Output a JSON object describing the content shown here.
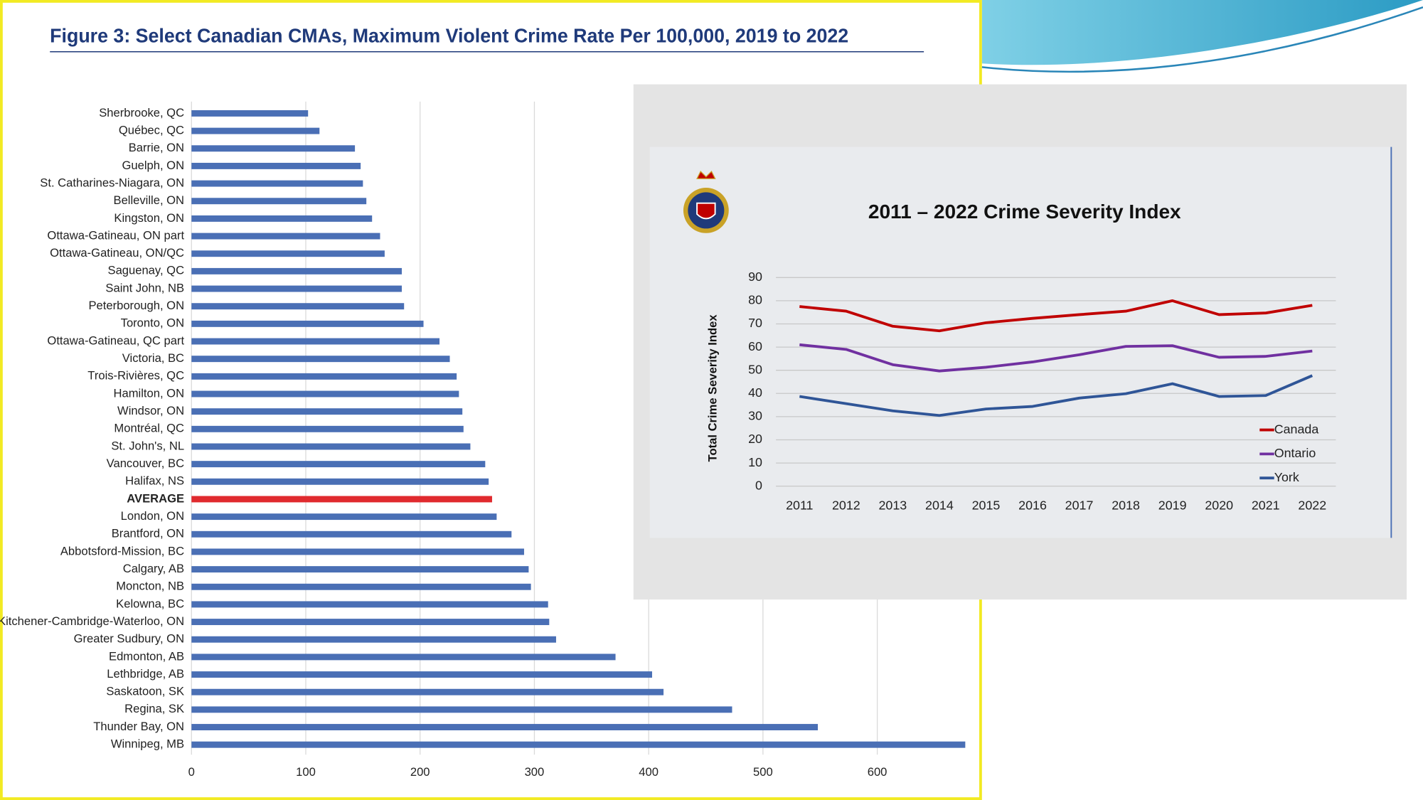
{
  "chart_data": [
    {
      "type": "hbar",
      "title": "Figure 3: Select Canadian CMAs, Maximum Violent Crime Rate Per 100,000, 2019 to 2022",
      "categories": [
        "Sherbrooke, QC",
        "Québec, QC",
        "Barrie, ON",
        "Guelph, ON",
        "St. Catharines-Niagara, ON",
        "Belleville, ON",
        "Kingston, ON",
        "Ottawa-Gatineau, ON part",
        "Ottawa-Gatineau, ON/QC",
        "Saguenay, QC",
        "Saint John, NB",
        "Peterborough, ON",
        "Toronto, ON",
        "Ottawa-Gatineau, QC part",
        "Victoria, BC",
        "Trois-Rivières, QC",
        "Hamilton, ON",
        "Windsor, ON",
        "Montréal, QC",
        "St. John's, NL",
        "Vancouver, BC",
        "Halifax, NS",
        "AVERAGE",
        "London, ON",
        "Brantford, ON",
        "Abbotsford-Mission, BC",
        "Calgary, AB",
        "Moncton, NB",
        "Kelowna, BC",
        "Kitchener-Cambridge-Waterloo, ON",
        "Greater Sudbury, ON",
        "Edmonton, AB",
        "Lethbridge, AB",
        "Saskatoon, SK",
        "Regina, SK",
        "Thunder Bay, ON",
        "Winnipeg, MB"
      ],
      "values": [
        102,
        112,
        143,
        148,
        150,
        153,
        158,
        165,
        169,
        184,
        184,
        186,
        203,
        217,
        226,
        232,
        234,
        237,
        238,
        244,
        257,
        260,
        263,
        267,
        280,
        291,
        295,
        297,
        312,
        313,
        319,
        371,
        403,
        413,
        473,
        548,
        677
      ],
      "color": "#4a6fb5",
      "highlight": {
        "index": 22,
        "color": "#e02a2e"
      },
      "xlim": [
        0,
        690
      ],
      "xticks": [
        0,
        100,
        200,
        300,
        400,
        500,
        600
      ],
      "grid": true
    },
    {
      "type": "line",
      "title": "2011 – 2022 Crime Severity Index",
      "y_label": "Total Crime Severity Index",
      "categories": [
        "2011",
        "2012",
        "2013",
        "2014",
        "2015",
        "2016",
        "2017",
        "2018",
        "2019",
        "2020",
        "2021",
        "2022"
      ],
      "series": [
        {
          "name": "Canada",
          "color": "#c00000",
          "values": [
            77.5,
            75.5,
            69,
            67,
            70.5,
            72.4,
            74,
            75.5,
            80,
            74,
            74.7,
            78
          ]
        },
        {
          "name": "Ontario",
          "color": "#7030a0",
          "values": [
            61,
            59,
            52.4,
            49.7,
            51.3,
            53.6,
            56.7,
            60.3,
            60.6,
            55.6,
            56,
            58.3
          ]
        },
        {
          "name": "York",
          "color": "#2f5597",
          "values": [
            38.7,
            35.6,
            32.5,
            30.5,
            33.3,
            34.4,
            38,
            39.9,
            44.2,
            38.7,
            39.1,
            47.7
          ]
        }
      ],
      "ylim": [
        0,
        90
      ],
      "yticks": [
        0,
        10,
        20,
        30,
        40,
        50,
        60,
        70,
        80,
        90
      ],
      "grid": true,
      "legend": "lower-right"
    }
  ]
}
